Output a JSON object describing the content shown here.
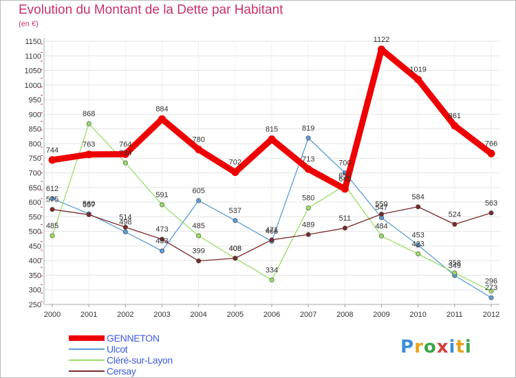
{
  "title": "Evolution du Montant de la Dette par Habitant",
  "unit": "(en €)",
  "logo": {
    "letters": [
      {
        "ch": "P",
        "color": "#3d8fd6"
      },
      {
        "ch": "r",
        "color": "#e8a21c"
      },
      {
        "ch": "o",
        "color": "#3aa64a"
      },
      {
        "ch": "x",
        "color": "#d63d3d"
      },
      {
        "ch": "i",
        "color": "#3d8fd6"
      },
      {
        "ch": "t",
        "color": "#e8a21c"
      },
      {
        "ch": "i",
        "color": "#3aa64a"
      }
    ]
  },
  "chart_data": {
    "type": "line",
    "x": [
      "2000",
      "2001",
      "2002",
      "2003",
      "2004",
      "2005",
      "2006",
      "2007",
      "2008",
      "2009",
      "2010",
      "2011",
      "2012"
    ],
    "ylim": [
      250,
      1150
    ],
    "yticks": [
      250,
      300,
      350,
      400,
      450,
      500,
      550,
      600,
      650,
      700,
      750,
      800,
      850,
      900,
      950,
      1000,
      1050,
      1100,
      1150
    ],
    "grid": true,
    "legend_position": "bottom-left",
    "series": [
      {
        "name": "GENNETON",
        "color": "#ee0000",
        "values": [
          744,
          763,
          764,
          884,
          780,
          702,
          815,
          713,
          645,
          1122,
          1019,
          861,
          766
        ]
      },
      {
        "name": "Ulcot",
        "color": "#5b9bd5",
        "values": [
          612,
          560,
          498,
          433,
          605,
          537,
          466,
          819,
          700,
          547,
          453,
          349,
          273
        ]
      },
      {
        "name": "Cléré-sur-Layon",
        "color": "#99dd66",
        "values": [
          485,
          868,
          734,
          591,
          485,
          408,
          334,
          580,
          657,
          484,
          423,
          358,
          296
        ]
      },
      {
        "name": "Cersay",
        "color": "#7a2a2a",
        "values": [
          575,
          557,
          514,
          473,
          399,
          408,
          471,
          489,
          511,
          559,
          584,
          524,
          563
        ]
      }
    ]
  }
}
